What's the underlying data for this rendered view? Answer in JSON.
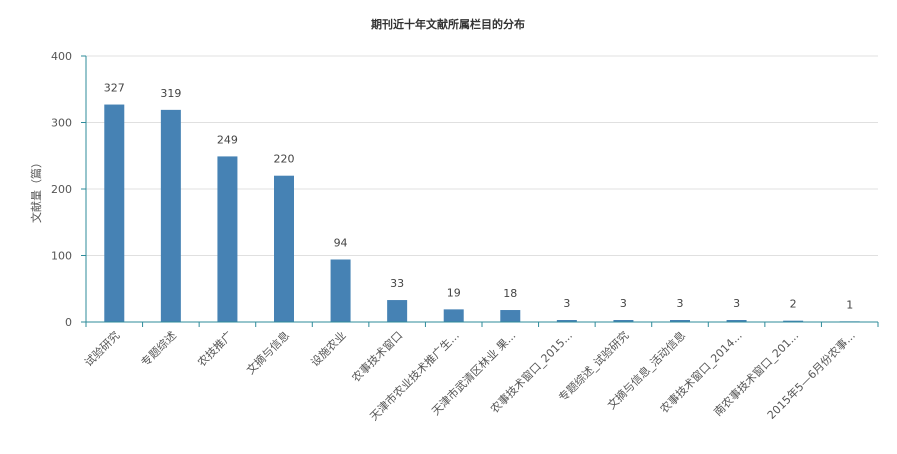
{
  "chart_data": {
    "type": "bar",
    "title": "期刊近十年文献所属栏目的分布",
    "xlabel": "",
    "ylabel": "文献量（篇）",
    "ylim": [
      0,
      400
    ],
    "yticks": [
      0,
      100,
      200,
      300,
      400
    ],
    "grid": true,
    "legend": "none",
    "bar_color": "#4682b4",
    "axis_color": "#2e8b9a",
    "grid_color": "#e0e0e0",
    "categories": [
      "试验研究",
      "专题综述",
      "农技推广",
      "文摘与信息",
      "设施农业",
      "农事技术窗口",
      "天津市农业技术推广生...",
      "天津市武清区林业 果...",
      "农事技术窗口_2015...",
      "专题综述_试验研究",
      "文摘与信息_活动信息",
      "农事技术窗口_2014...",
      "南农事技术窗口_201...",
      "2015年5—6月份农事..."
    ],
    "values": [
      327,
      319,
      249,
      220,
      94,
      33,
      19,
      18,
      3,
      3,
      3,
      3,
      2,
      1
    ]
  }
}
